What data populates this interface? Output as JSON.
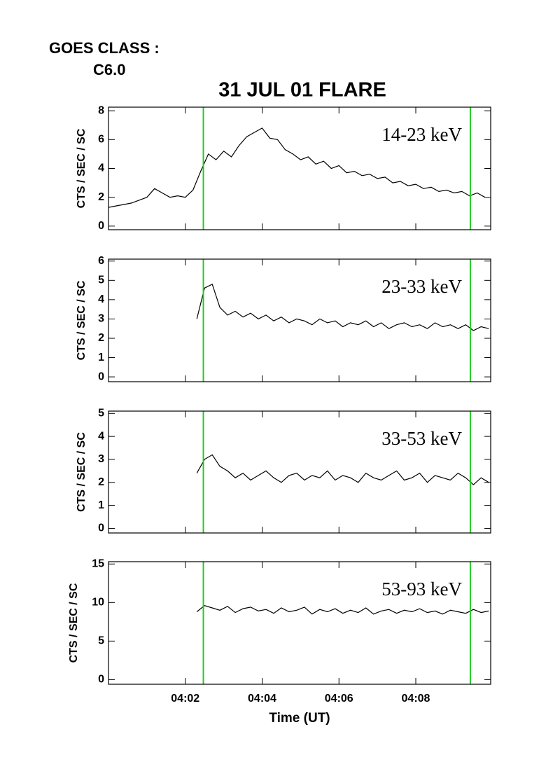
{
  "header": {
    "goes_label": "GOES CLASS :",
    "goes_class": "C6.0",
    "title": "31 JUL 01 FLARE"
  },
  "chart_data": [
    {
      "type": "line",
      "label": "14-23 keV",
      "ylabel": "CTS / SEC / SC",
      "color": "#000000",
      "xlim": [
        0,
        9.95
      ],
      "ylim": [
        -0.25,
        8.25
      ],
      "yticks": [
        0,
        2,
        4,
        6,
        8
      ],
      "vlines": [
        2.47,
        9.42
      ],
      "vline_color": "#22cc22",
      "x": [
        0,
        0.2,
        0.4,
        0.6,
        0.8,
        1,
        1.2,
        1.4,
        1.6,
        1.8,
        2,
        2.2,
        2.4,
        2.6,
        2.8,
        3,
        3.2,
        3.4,
        3.6,
        3.8,
        4,
        4.2,
        4.4,
        4.6,
        4.8,
        5,
        5.2,
        5.4,
        5.6,
        5.8,
        6,
        6.2,
        6.4,
        6.6,
        6.8,
        7,
        7.2,
        7.4,
        7.6,
        7.8,
        8,
        8.2,
        8.4,
        8.6,
        8.8,
        9,
        9.2,
        9.4,
        9.6,
        9.8
      ],
      "values": [
        1.3,
        1.4,
        1.5,
        1.6,
        1.8,
        2.0,
        2.6,
        2.3,
        2.0,
        2.1,
        2.0,
        2.5,
        3.8,
        5.0,
        4.6,
        5.2,
        4.8,
        5.6,
        6.2,
        6.5,
        6.8,
        6.1,
        6.0,
        5.3,
        5.0,
        4.6,
        4.8,
        4.3,
        4.5,
        4.0,
        4.2,
        3.7,
        3.8,
        3.5,
        3.6,
        3.3,
        3.4,
        3.0,
        3.1,
        2.8,
        2.9,
        2.6,
        2.7,
        2.4,
        2.5,
        2.3,
        2.4,
        2.1,
        2.3,
        2.0
      ]
    },
    {
      "type": "line",
      "label": "23-33 keV",
      "ylabel": "CTS / SEC / SC",
      "color": "#000000",
      "xlim": [
        0,
        9.95
      ],
      "ylim": [
        -0.25,
        6.1
      ],
      "yticks": [
        0,
        1,
        2,
        3,
        4,
        5,
        6
      ],
      "vlines": [
        2.47,
        9.42
      ],
      "vline_color": "#22cc22",
      "x": [
        2.3,
        2.5,
        2.7,
        2.9,
        3.1,
        3.3,
        3.5,
        3.7,
        3.9,
        4.1,
        4.3,
        4.5,
        4.7,
        4.9,
        5.1,
        5.3,
        5.5,
        5.7,
        5.9,
        6.1,
        6.3,
        6.5,
        6.7,
        6.9,
        7.1,
        7.3,
        7.5,
        7.7,
        7.9,
        8.1,
        8.3,
        8.5,
        8.7,
        8.9,
        9.1,
        9.3,
        9.5,
        9.7,
        9.9
      ],
      "values": [
        3.0,
        4.6,
        4.8,
        3.6,
        3.2,
        3.4,
        3.1,
        3.3,
        3.0,
        3.2,
        2.9,
        3.1,
        2.8,
        3.0,
        2.9,
        2.7,
        3.0,
        2.8,
        2.9,
        2.6,
        2.8,
        2.7,
        2.9,
        2.6,
        2.8,
        2.5,
        2.7,
        2.8,
        2.6,
        2.7,
        2.5,
        2.8,
        2.6,
        2.7,
        2.5,
        2.7,
        2.4,
        2.6,
        2.5
      ]
    },
    {
      "type": "line",
      "label": "33-53 keV",
      "ylabel": "CTS / SEC / SC",
      "color": "#000000",
      "xlim": [
        0,
        9.95
      ],
      "ylim": [
        -0.2,
        5.1
      ],
      "yticks": [
        0,
        1,
        2,
        3,
        4,
        5
      ],
      "vlines": [
        2.47,
        9.42
      ],
      "vline_color": "#22cc22",
      "x": [
        2.3,
        2.5,
        2.7,
        2.9,
        3.1,
        3.3,
        3.5,
        3.7,
        3.9,
        4.1,
        4.3,
        4.5,
        4.7,
        4.9,
        5.1,
        5.3,
        5.5,
        5.7,
        5.9,
        6.1,
        6.3,
        6.5,
        6.7,
        6.9,
        7.1,
        7.3,
        7.5,
        7.7,
        7.9,
        8.1,
        8.3,
        8.5,
        8.7,
        8.9,
        9.1,
        9.3,
        9.5,
        9.7,
        9.9
      ],
      "values": [
        2.4,
        3.0,
        3.2,
        2.7,
        2.5,
        2.2,
        2.4,
        2.1,
        2.3,
        2.5,
        2.2,
        2.0,
        2.3,
        2.4,
        2.1,
        2.3,
        2.2,
        2.5,
        2.1,
        2.3,
        2.2,
        2.0,
        2.4,
        2.2,
        2.1,
        2.3,
        2.5,
        2.1,
        2.2,
        2.4,
        2.0,
        2.3,
        2.2,
        2.1,
        2.4,
        2.2,
        1.9,
        2.2,
        2.0
      ]
    },
    {
      "type": "line",
      "label": "53-93 keV",
      "ylabel": "CTS / SEC / SC",
      "color": "#000000",
      "xlim": [
        0,
        9.95
      ],
      "ylim": [
        -0.6,
        15.3
      ],
      "yticks": [
        0,
        5,
        10,
        15
      ],
      "vlines": [
        2.47,
        9.42
      ],
      "vline_color": "#22cc22",
      "x": [
        2.3,
        2.5,
        2.7,
        2.9,
        3.1,
        3.3,
        3.5,
        3.7,
        3.9,
        4.1,
        4.3,
        4.5,
        4.7,
        4.9,
        5.1,
        5.3,
        5.5,
        5.7,
        5.9,
        6.1,
        6.3,
        6.5,
        6.7,
        6.9,
        7.1,
        7.3,
        7.5,
        7.7,
        7.9,
        8.1,
        8.3,
        8.5,
        8.7,
        8.9,
        9.1,
        9.3,
        9.5,
        9.7,
        9.9
      ],
      "values": [
        8.8,
        9.6,
        9.3,
        9.0,
        9.5,
        8.7,
        9.2,
        9.4,
        8.9,
        9.1,
        8.6,
        9.3,
        8.8,
        9.0,
        9.4,
        8.5,
        9.1,
        8.8,
        9.2,
        8.6,
        9.0,
        8.7,
        9.3,
        8.5,
        8.9,
        9.1,
        8.6,
        9.0,
        8.8,
        9.2,
        8.7,
        8.9,
        8.5,
        9.0,
        8.8,
        8.6,
        9.1,
        8.7,
        8.9
      ],
      "xlabel": "Time (UT)",
      "xticks": [
        {
          "value": 2,
          "label": "04:02"
        },
        {
          "value": 4,
          "label": "04:04"
        },
        {
          "value": 6,
          "label": "04:06"
        },
        {
          "value": 8,
          "label": "04:08"
        }
      ]
    }
  ]
}
